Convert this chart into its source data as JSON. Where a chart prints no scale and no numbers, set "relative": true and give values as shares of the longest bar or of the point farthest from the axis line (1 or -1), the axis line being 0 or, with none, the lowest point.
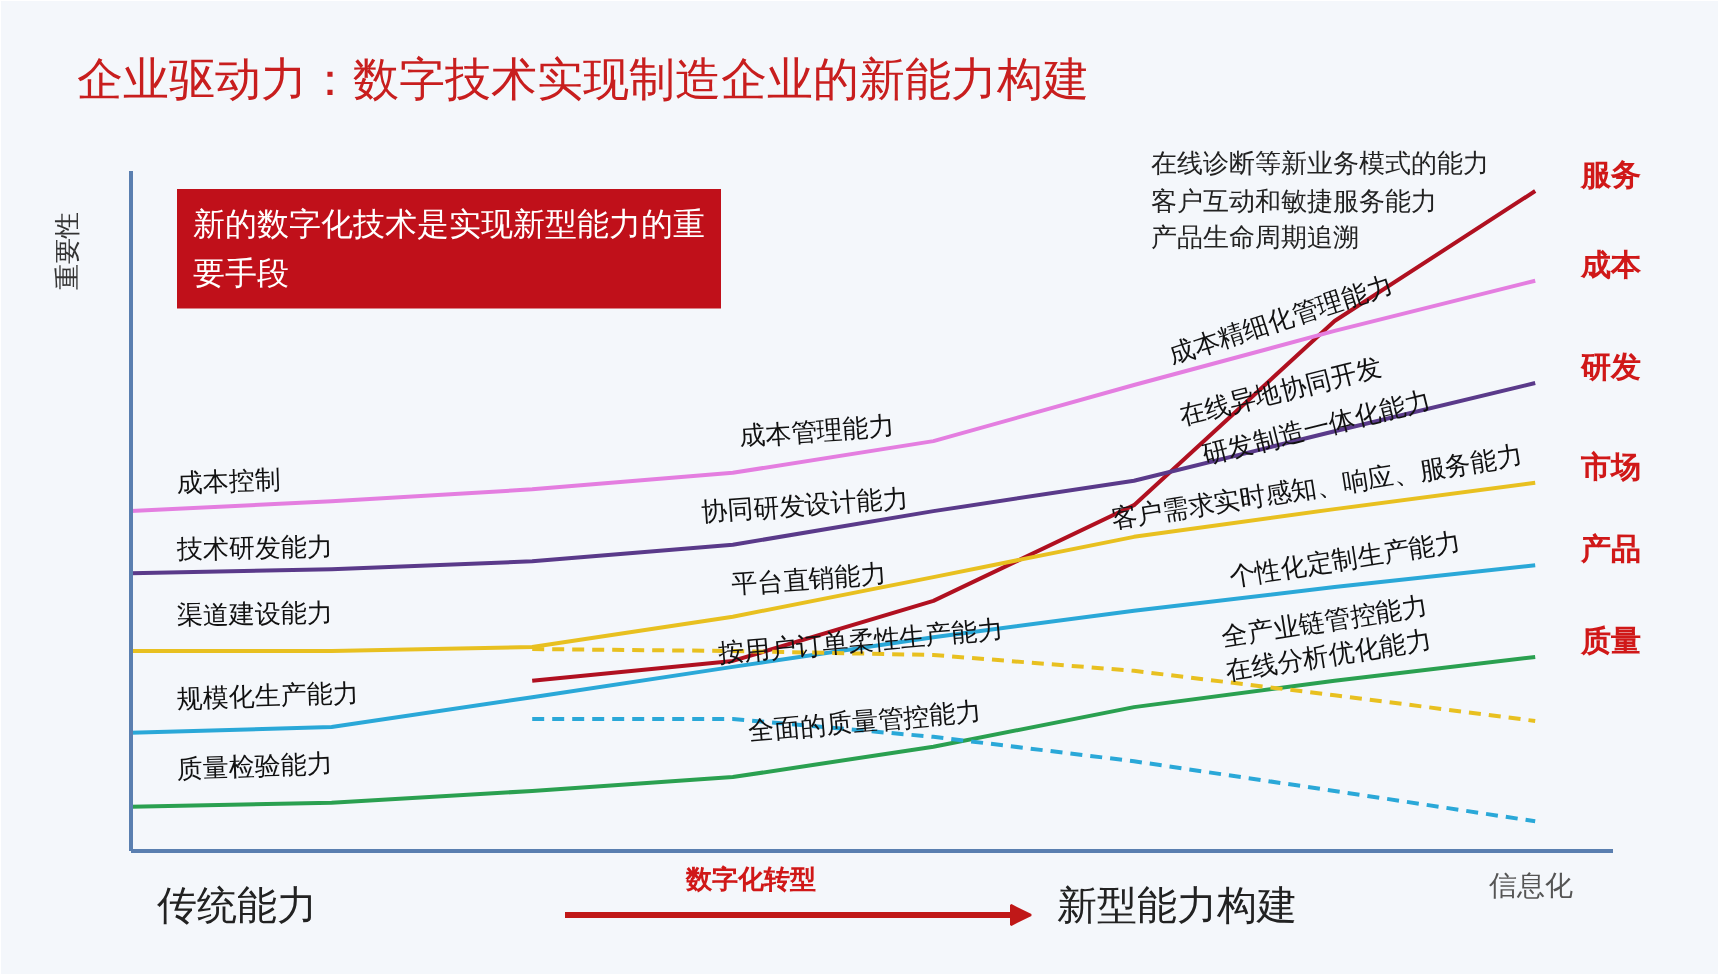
{
  "chart_data": {
    "type": "line",
    "title": "企业驱动力：数字技术实现制造企业的新能力构建",
    "xlabel": "信息化",
    "ylabel": "重要性",
    "relative": true,
    "categories": [
      null,
      null,
      null,
      null,
      null,
      null,
      null,
      null
    ],
    "series": [
      {
        "name": "服务",
        "color": "#b01020",
        "values": [
          null,
          null,
          0.258,
          0.288,
          0.379,
          0.524,
          0.803,
          1.0
        ]
      },
      {
        "name": "成本",
        "color": "#e47ee0",
        "values": [
          0.515,
          0.53,
          0.548,
          0.573,
          0.621,
          0.706,
          0.788,
          0.864
        ]
      },
      {
        "name": "研发",
        "color": "#5a3a8a",
        "values": [
          0.421,
          0.427,
          0.439,
          0.464,
          0.515,
          0.561,
          0.636,
          0.709
        ]
      },
      {
        "name": "市场",
        "color": "#e8c020",
        "values": [
          0.303,
          0.303,
          0.309,
          0.355,
          0.415,
          0.476,
          0.518,
          0.558
        ]
      },
      {
        "name": "产品",
        "color": "#2aa8d8",
        "values": [
          0.179,
          0.188,
          0.233,
          0.279,
          0.324,
          0.364,
          0.4,
          0.433
        ]
      },
      {
        "name": "质量",
        "color": "#2aa050",
        "values": [
          0.067,
          0.073,
          0.091,
          0.112,
          0.158,
          0.218,
          0.258,
          0.294
        ]
      },
      {
        "color": "#e8c020",
        "line_style": "dashed",
        "values": [
          null,
          null,
          0.306,
          0.303,
          0.297,
          0.273,
          0.236,
          0.197
        ]
      },
      {
        "color": "#2aa8d8",
        "line_style": "dashed",
        "values": [
          null,
          null,
          0.2,
          0.2,
          0.173,
          0.136,
          0.091,
          0.045
        ]
      }
    ],
    "annotations": [
      "新的数字化技术是实现新型能力的重要手段",
      "成本控制",
      "技术研发能力",
      "渠道建设能力",
      "规模化生产能力",
      "质量检验能力",
      "成本管理能力",
      "协同研发设计能力",
      "平台直销能力",
      "按用户订单柔性生产能力",
      "全面的质量管控能力",
      "在线诊断等新业务模式的能力",
      "客户互动和敏捷服务能力",
      "产品生命周期追溯",
      "成本精细化管理能力",
      "在线异地协同开发",
      "研发制造一体化能力",
      "客户需求实时感知、响应、服务能力",
      "个性化定制生产能力",
      "全产业链管控能力",
      "在线分析优化能力",
      "传统能力",
      "数字化转型",
      "新型能力构建"
    ]
  }
}
